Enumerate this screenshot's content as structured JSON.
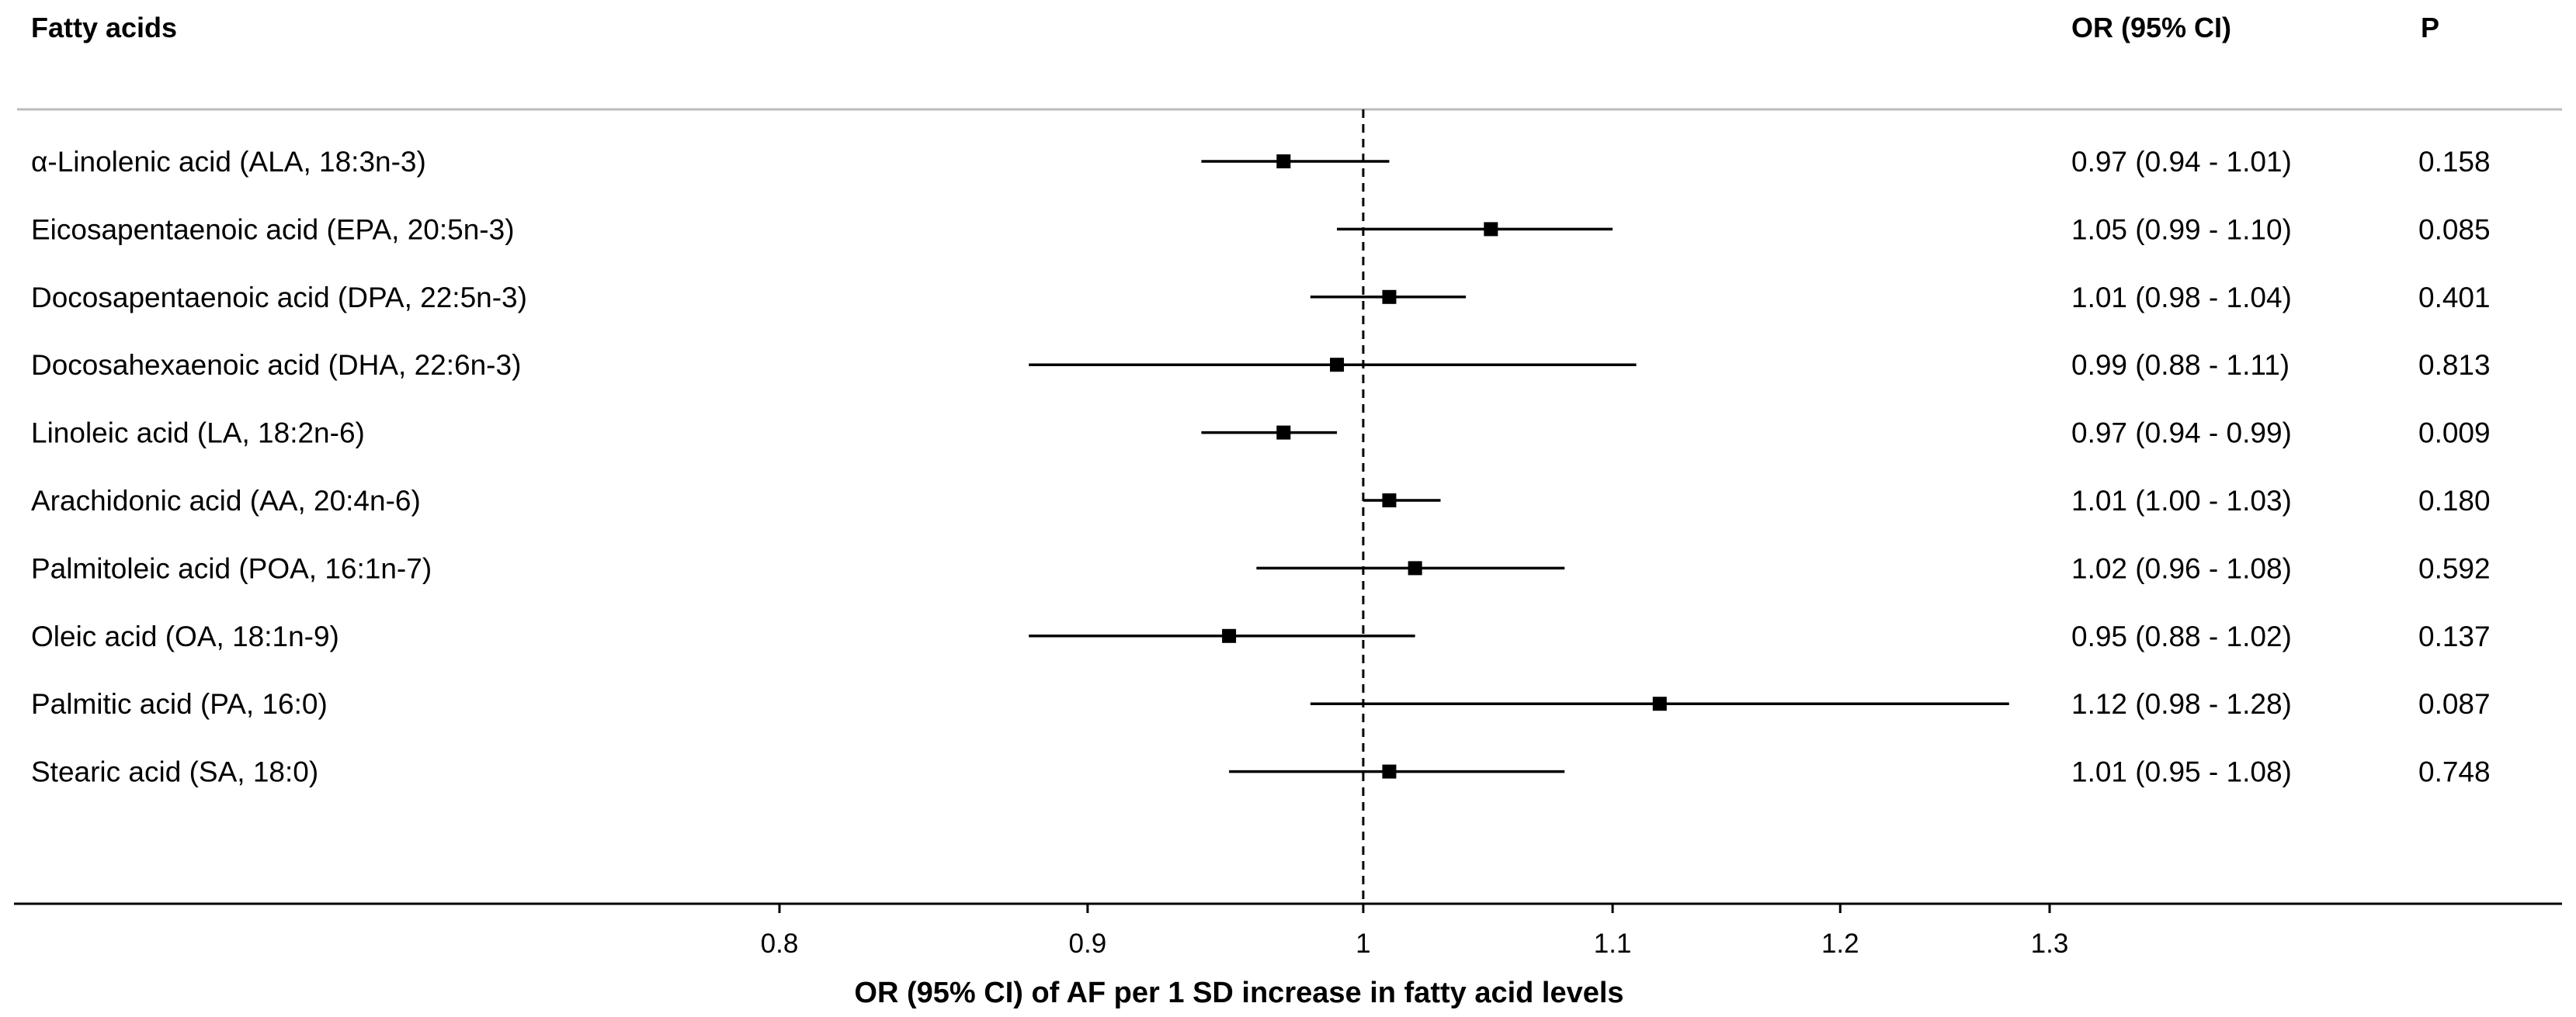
{
  "headers": {
    "label_col": "Fatty acids",
    "or_col": "OR (95% CI)",
    "p_col": "P"
  },
  "chart_data": {
    "type": "forest",
    "x_scale": "log",
    "xlim": [
      0.8,
      1.3
    ],
    "reference_line": 1,
    "xticks": [
      0.8,
      0.9,
      1,
      1.1,
      1.2,
      1.3
    ],
    "xtick_labels": [
      "0.8",
      "0.9",
      "1",
      "1.1",
      "1.2",
      "1.3"
    ],
    "xlabel": "OR (95% CI) of AF per 1 SD increase in fatty acid levels",
    "rows": [
      {
        "label": "α-Linolenic acid (ALA, 18:3n-3)",
        "or": 0.97,
        "lo": 0.94,
        "hi": 1.01,
        "or_text": "0.97 (0.94 - 1.01)",
        "p": "0.158"
      },
      {
        "label": "Eicosapentaenoic acid (EPA, 20:5n-3)",
        "or": 1.05,
        "lo": 0.99,
        "hi": 1.1,
        "or_text": "1.05 (0.99 - 1.10)",
        "p": "0.085"
      },
      {
        "label": "Docosapentaenoic acid (DPA, 22:5n-3)",
        "or": 1.01,
        "lo": 0.98,
        "hi": 1.04,
        "or_text": "1.01 (0.98 - 1.04)",
        "p": "0.401"
      },
      {
        "label": "Docosahexaenoic acid (DHA, 22:6n-3)",
        "or": 0.99,
        "lo": 0.88,
        "hi": 1.11,
        "or_text": "0.99 (0.88 - 1.11)",
        "p": "0.813"
      },
      {
        "label": "Linoleic acid (LA, 18:2n-6)",
        "or": 0.97,
        "lo": 0.94,
        "hi": 0.99,
        "or_text": "0.97 (0.94 - 0.99)",
        "p": "0.009"
      },
      {
        "label": "Arachidonic acid (AA, 20:4n-6)",
        "or": 1.01,
        "lo": 1.0,
        "hi": 1.03,
        "or_text": "1.01 (1.00 - 1.03)",
        "p": "0.180"
      },
      {
        "label": "Palmitoleic acid (POA, 16:1n-7)",
        "or": 1.02,
        "lo": 0.96,
        "hi": 1.08,
        "or_text": "1.02 (0.96 - 1.08)",
        "p": "0.592"
      },
      {
        "label": "Oleic acid (OA, 18:1n-9)",
        "or": 0.95,
        "lo": 0.88,
        "hi": 1.02,
        "or_text": "0.95 (0.88 - 1.02)",
        "p": "0.137"
      },
      {
        "label": "Palmitic acid (PA, 16:0)",
        "or": 1.12,
        "lo": 0.98,
        "hi": 1.28,
        "or_text": "1.12 (0.98 - 1.28)",
        "p": "0.087"
      },
      {
        "label": "Stearic acid (SA, 18:0)",
        "or": 1.01,
        "lo": 0.95,
        "hi": 1.08,
        "or_text": "1.01 (0.95 - 1.08)",
        "p": "0.748"
      }
    ]
  }
}
